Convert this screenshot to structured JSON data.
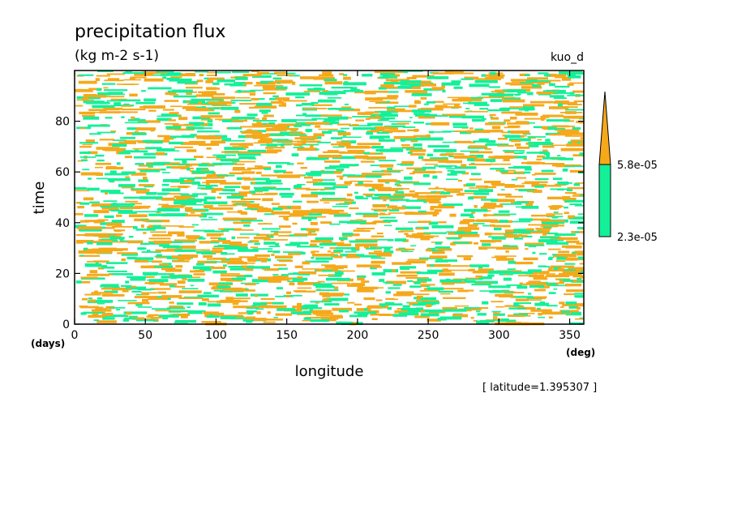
{
  "chart_data": {
    "type": "heatmap",
    "title": "precipitation flux",
    "subtitle": "(kg m-2 s-1)",
    "experiment": "kuo_d",
    "xlabel": "longitude",
    "ylabel": "time",
    "x_unit": "(deg)",
    "y_unit": "(days)",
    "xlim": [
      0,
      360
    ],
    "ylim": [
      0,
      100
    ],
    "x_ticks": [
      0,
      50,
      100,
      150,
      200,
      250,
      300,
      350
    ],
    "y_ticks": [
      0,
      20,
      40,
      60,
      80
    ],
    "x_tick_labels": [
      "0",
      "50",
      "100",
      "150",
      "200",
      "250",
      "300",
      "350"
    ],
    "y_tick_labels": [
      "0",
      "20",
      "40",
      "60",
      "80"
    ],
    "annotation": "[ latitude=1.395307 ]",
    "levels": [
      {
        "label": "2.3e-05",
        "value": 2.3e-05,
        "color": "#14f098"
      },
      {
        "label": "5.8e-05",
        "value": 5.8e-05,
        "color": "#f5a91a"
      }
    ],
    "field_description_only": true,
    "grid": false
  }
}
